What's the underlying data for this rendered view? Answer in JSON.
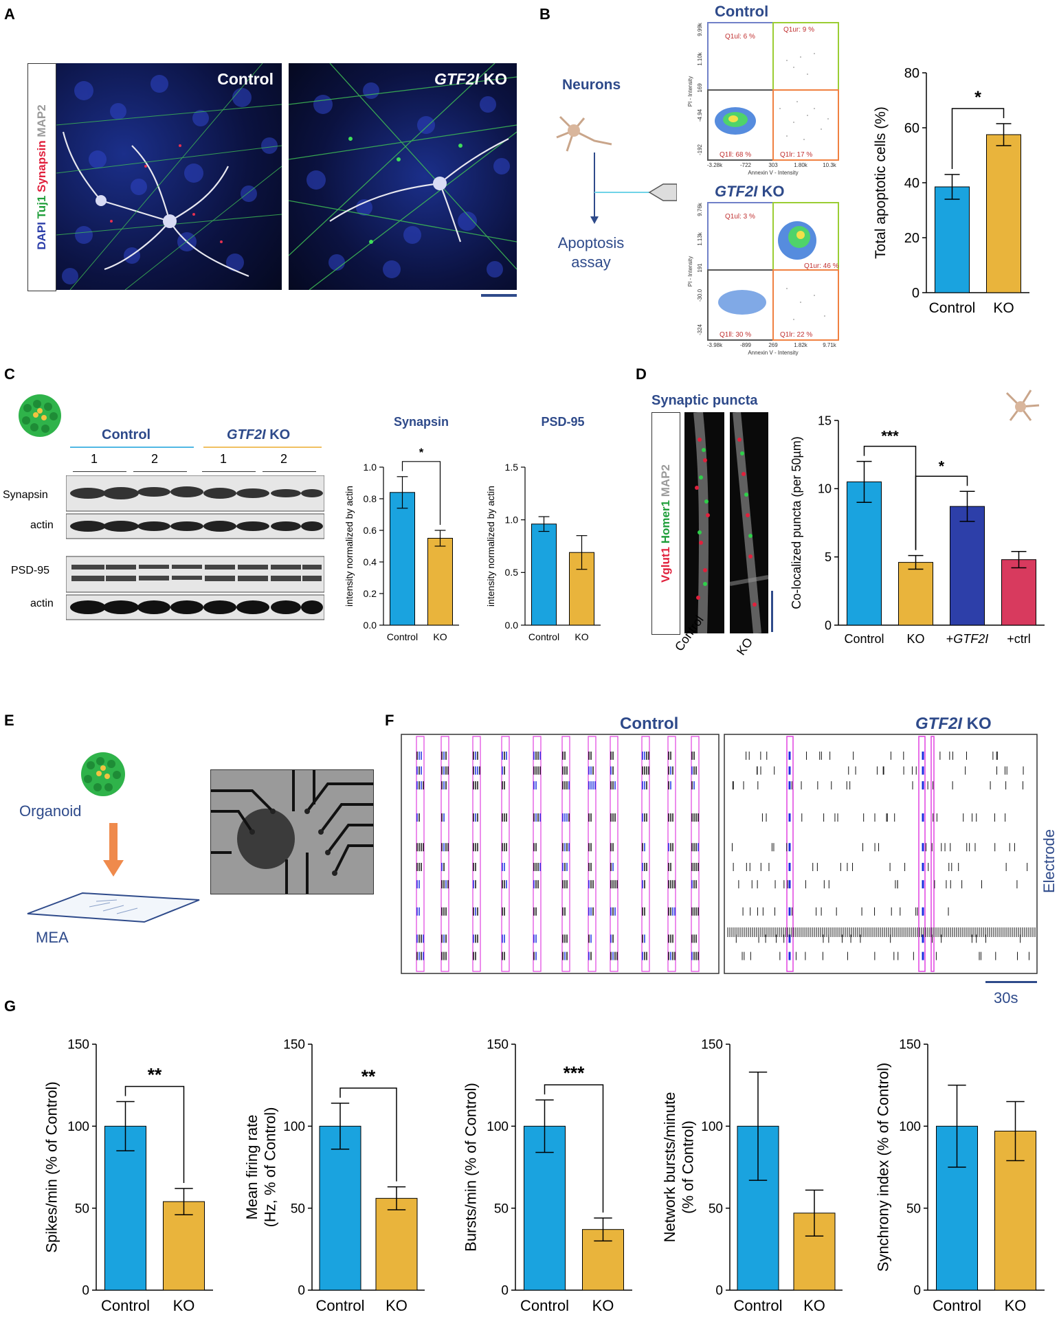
{
  "panels": {
    "A": "A",
    "B": "B",
    "C": "C",
    "D": "D",
    "E": "E",
    "F": "F",
    "G": "G"
  },
  "panelA": {
    "stain": {
      "dapi": "DAPI",
      "tuj1": "Tuj1",
      "synapsin": "Synapsin",
      "map2": "MAP2"
    },
    "control_label": "Control",
    "ko_gene": "GTF2I",
    "ko_suffix": " KO"
  },
  "panelB": {
    "neurons": "Neurons",
    "assay_line1": "Apoptosis",
    "assay_line2": "assay",
    "control_title": "Control",
    "ko_gene": "GTF2I",
    "ko_suffix": " KO",
    "flow_control": {
      "q1ul": "Q1ul: 6 %",
      "q1ur": "Q1ur: 9 %",
      "q1ll": "Q1ll: 68 %",
      "q1lr": "Q1lr: 17 %",
      "yticks": [
        "9.99k",
        "1.10k",
        "169",
        "-4.94",
        "-192"
      ],
      "xticks": [
        "-3.28k",
        "-722",
        "303",
        "1.80k",
        "10.3k"
      ],
      "xlabel": "Annexin V - Intensity",
      "ylabel": "PI - Intensity"
    },
    "flow_ko": {
      "q1ul": "Q1ul: 3 %",
      "q1ur": "Q1ur: 46 %",
      "q1ll": "Q1ll: 30 %",
      "q1lr": "Q1lr: 22 %",
      "yticks": [
        "9.76k",
        "1.13k",
        "191",
        "-30.0",
        "-324"
      ],
      "xticks": [
        "-3.98k",
        "-899",
        "269",
        "1.82k",
        "9.71k"
      ],
      "xlabel": "Annexin V - Intensity",
      "ylabel": "PI - Intensity"
    }
  },
  "panelC": {
    "control": "Control",
    "ko_gene": "GTF2I",
    "ko_suffix": " KO",
    "lanes": [
      "1",
      "2",
      "1",
      "2"
    ],
    "rows": [
      "Synapsin",
      "actin",
      "PSD-95",
      "actin"
    ]
  },
  "panelD": {
    "title": "Synaptic puncta",
    "stain": {
      "vglut1": "Vglut1",
      "homer1": "Homer1",
      "map2": "MAP2"
    },
    "img_labels": [
      "Control",
      "KO"
    ]
  },
  "panelE": {
    "organoid": "Organoid",
    "mea": "MEA"
  },
  "panelF": {
    "control_title": "Control",
    "ko_gene": "GTF2I",
    "ko_suffix": " KO",
    "electrode": "Electrode",
    "scale": "30s"
  },
  "colors": {
    "blue": "#1aa3df",
    "gold": "#e9b43c",
    "dark_blue": "#2d3fa9",
    "red": "#d83a5e",
    "title_blue": "#2e4a8a"
  },
  "chart_data": [
    {
      "id": "B_apoptosis",
      "type": "bar",
      "categories": [
        "Control",
        "KO"
      ],
      "values": [
        38.5,
        57.5
      ],
      "errors": [
        4.5,
        4
      ],
      "ylabel": "Total apoptotic cells (%)",
      "ylim": [
        0,
        80
      ],
      "yticks": [
        "0",
        "20",
        "40",
        "60",
        "80"
      ],
      "significance": "*"
    },
    {
      "id": "C_synapsin",
      "type": "bar",
      "title": "Synapsin",
      "categories": [
        "Control",
        "KO"
      ],
      "values": [
        0.84,
        0.55
      ],
      "errors": [
        0.1,
        0.05
      ],
      "ylabel": "intensity normalized by actin",
      "ylim": [
        0,
        1.0
      ],
      "yticks": [
        "0.0",
        "0.2",
        "0.4",
        "0.6",
        "0.8",
        "1.0"
      ],
      "significance": "*"
    },
    {
      "id": "C_psd95",
      "type": "bar",
      "title": "PSD-95",
      "categories": [
        "Control",
        "KO"
      ],
      "values": [
        0.96,
        0.69
      ],
      "errors": [
        0.07,
        0.16
      ],
      "ylabel": "intensity normalized by actin",
      "ylim": [
        0,
        1.5
      ],
      "yticks": [
        "0.0",
        "0.5",
        "1.0",
        "1.5"
      ],
      "significance": ""
    },
    {
      "id": "D_puncta",
      "type": "bar",
      "categories": [
        "Control",
        "KO",
        "+GTF2I",
        "+ctrl"
      ],
      "values": [
        10.5,
        4.6,
        8.7,
        4.8
      ],
      "errors": [
        1.5,
        0.5,
        1.1,
        0.6
      ],
      "ylabel": "Co-localized puncta (per 50µm)",
      "ylim": [
        0,
        15
      ],
      "yticks": [
        "0",
        "5",
        "10",
        "15"
      ],
      "significance": [
        "***",
        "*"
      ]
    },
    {
      "id": "G_spikes",
      "type": "bar",
      "categories": [
        "Control",
        "KO"
      ],
      "values": [
        100,
        54
      ],
      "errors": [
        15,
        8
      ],
      "ylabel": "Spikes/min (% of Control)",
      "ylim": [
        0,
        150
      ],
      "yticks": [
        "0",
        "50",
        "100",
        "150"
      ],
      "significance": "**"
    },
    {
      "id": "G_mfr",
      "type": "bar",
      "categories": [
        "Control",
        "KO"
      ],
      "values": [
        100,
        56
      ],
      "errors": [
        14,
        7
      ],
      "ylabel": "Mean firing rate (Hz, % of Control)",
      "ylim": [
        0,
        150
      ],
      "yticks": [
        "0",
        "50",
        "100",
        "150"
      ],
      "significance": "**"
    },
    {
      "id": "G_bursts",
      "type": "bar",
      "categories": [
        "Control",
        "KO"
      ],
      "values": [
        100,
        37
      ],
      "errors": [
        16,
        7
      ],
      "ylabel": "Bursts/min (% of Control)",
      "ylim": [
        0,
        150
      ],
      "yticks": [
        "0",
        "50",
        "100",
        "150"
      ],
      "significance": "***"
    },
    {
      "id": "G_network",
      "type": "bar",
      "categories": [
        "Control",
        "KO"
      ],
      "values": [
        100,
        47
      ],
      "errors": [
        33,
        14
      ],
      "ylabel": "Network bursts/minute (% of Control)",
      "ylim": [
        0,
        150
      ],
      "yticks": [
        "0",
        "50",
        "100",
        "150"
      ],
      "significance": ""
    },
    {
      "id": "G_synchrony",
      "type": "bar",
      "categories": [
        "Control",
        "KO"
      ],
      "values": [
        100,
        97
      ],
      "errors": [
        25,
        18
      ],
      "ylabel": "Synchrony index (% of Control)",
      "ylim": [
        0,
        150
      ],
      "yticks": [
        "0",
        "50",
        "100",
        "150"
      ],
      "significance": ""
    }
  ]
}
